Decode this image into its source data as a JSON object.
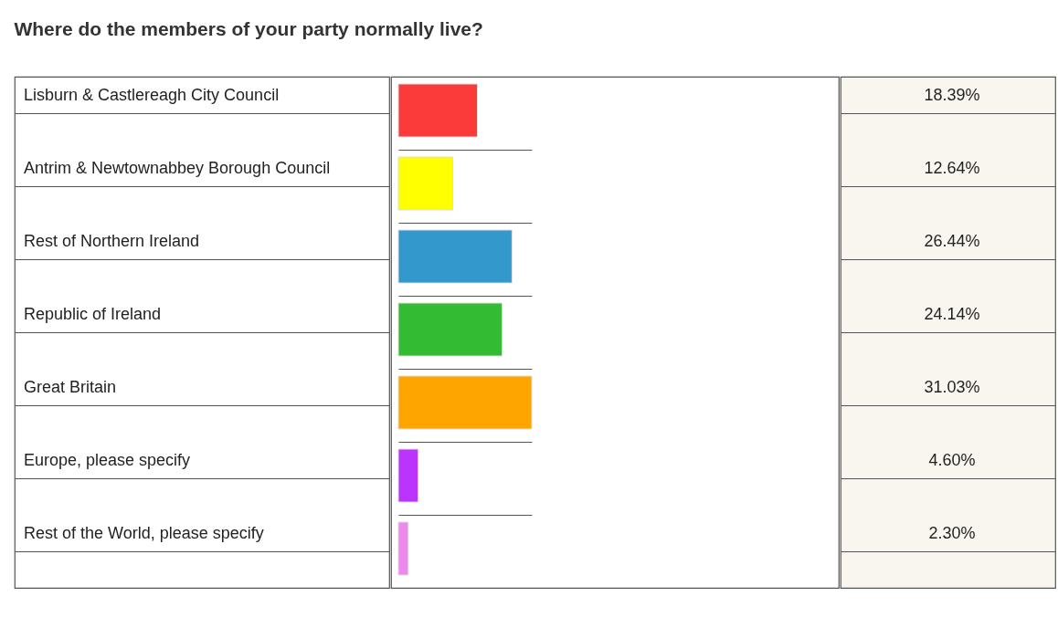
{
  "chart_data": {
    "type": "bar",
    "orientation": "horizontal",
    "title": "Where do the members of your party normally live?",
    "categories": [
      "Lisburn & Castlereagh City Council",
      "Antrim & Newtownabbey Borough Council",
      "Rest of Northern Ireland",
      "Republic of Ireland",
      "Great Britain",
      "Europe, please specify",
      "Rest of the World, please specify"
    ],
    "values": [
      18.39,
      12.64,
      26.44,
      24.14,
      31.03,
      4.6,
      2.3
    ],
    "value_labels": [
      "18.39%",
      "12.64%",
      "26.44%",
      "24.14%",
      "31.03%",
      "4.60%",
      "2.30%"
    ],
    "colors": [
      "#fb3a3a",
      "#ffff00",
      "#3399cc",
      "#33bb33",
      "#ffa500",
      "#bb33ff",
      "#ee88ee"
    ],
    "grid": "y",
    "legend": false
  }
}
